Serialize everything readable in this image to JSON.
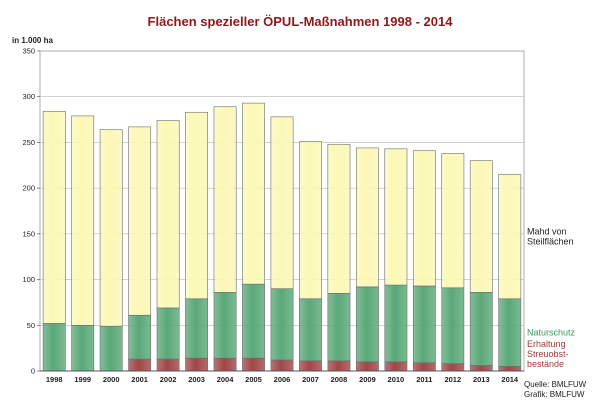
{
  "chart_data": {
    "type": "bar",
    "stacked": true,
    "title": "Flächen spezieller ÖPUL-Maßnahmen 1998 - 2014",
    "ylabel": "in 1.000 ha",
    "ylim": [
      0,
      350
    ],
    "yticks": [
      0,
      50,
      100,
      150,
      200,
      250,
      300,
      350
    ],
    "grid": true,
    "legend_position": "right",
    "categories": [
      "1998",
      "1999",
      "2000",
      "2001",
      "2002",
      "2003",
      "2004",
      "2005",
      "2006",
      "2007",
      "2008",
      "2009",
      "2010",
      "2011",
      "2012",
      "2013",
      "2014"
    ],
    "series": [
      {
        "name": "Erhaltung Streuobst-bestände",
        "legend_lines": [
          "Erhaltung",
          "Streuobst-",
          "bestände"
        ],
        "color": "#a04648",
        "values": [
          0,
          0,
          0,
          13,
          13,
          14,
          14,
          14,
          12,
          11,
          11,
          10,
          10,
          9,
          8,
          6,
          5
        ]
      },
      {
        "name": "Naturschutz",
        "legend_lines": [
          "Naturschutz"
        ],
        "color": "#5aa878",
        "values": [
          52,
          50,
          49,
          48,
          56,
          65,
          72,
          81,
          78,
          68,
          74,
          82,
          84,
          84,
          83,
          80,
          74
        ]
      },
      {
        "name": "Mahd von Steilflächen",
        "legend_lines": [
          "Mahd von",
          "Steilflächen"
        ],
        "color": "#fbf8b6",
        "values": [
          232,
          229,
          215,
          206,
          205,
          204,
          203,
          198,
          188,
          172,
          163,
          152,
          149,
          148,
          147,
          144,
          136
        ]
      }
    ],
    "source_lines": [
      "Quelle: BMLFUW",
      "Grafik: BMLFUW"
    ]
  }
}
